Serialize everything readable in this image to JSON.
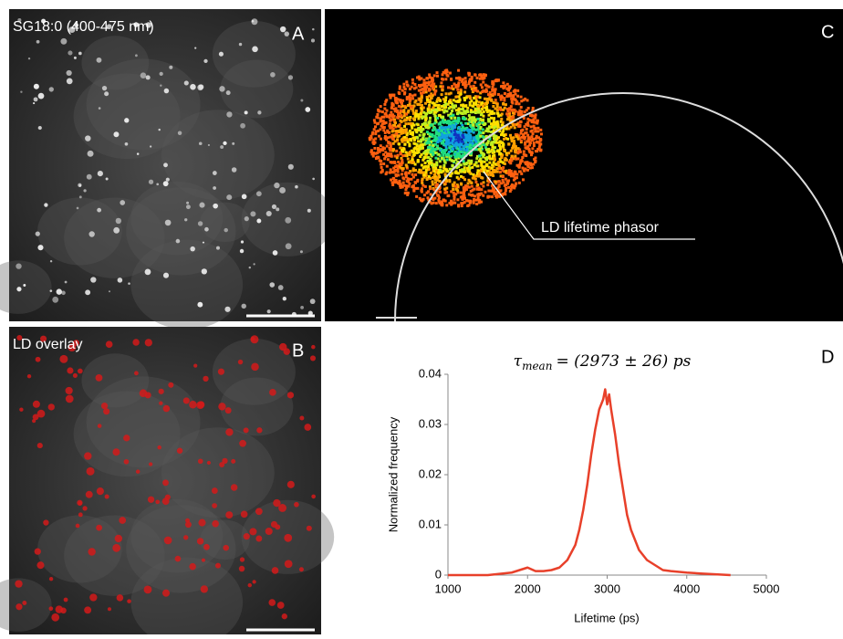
{
  "panels": {
    "a": {
      "label": "SG18:0 (400-475 nm)",
      "letter": "A"
    },
    "b": {
      "label": "LD overlay",
      "letter": "B"
    },
    "c": {
      "letter": "C",
      "annotation": "LD lifetime phasor"
    },
    "d": {
      "letter": "D"
    }
  },
  "chart_data": {
    "type": "line",
    "title_symbol": "τ",
    "title_subscript": "mean",
    "title_rest": "= (2973 ± 26) ps",
    "x_label": "Lifetime (ps)",
    "y_label": "Normalized frequency",
    "xlim": [
      1000,
      5000
    ],
    "xticks": [
      1000,
      2000,
      3000,
      4000,
      5000
    ],
    "ylim": [
      0,
      0.04
    ],
    "yticks": [
      0,
      0.01,
      0.02,
      0.03,
      0.04
    ],
    "series": [
      {
        "color": "#e8402a",
        "x": [
          1000,
          1500,
          1800,
          1900,
          2000,
          2100,
          2200,
          2300,
          2400,
          2500,
          2600,
          2650,
          2700,
          2750,
          2800,
          2850,
          2900,
          2950,
          2975,
          3000,
          3025,
          3050,
          3100,
          3150,
          3200,
          3250,
          3300,
          3350,
          3400,
          3500,
          3600,
          3700,
          3800,
          4000,
          4200,
          4550
        ],
        "values": [
          0,
          0,
          0.0005,
          0.001,
          0.0015,
          0.0008,
          0.0008,
          0.001,
          0.0015,
          0.003,
          0.006,
          0.009,
          0.013,
          0.018,
          0.024,
          0.029,
          0.033,
          0.035,
          0.037,
          0.034,
          0.036,
          0.033,
          0.028,
          0.022,
          0.017,
          0.012,
          0.009,
          0.007,
          0.005,
          0.003,
          0.002,
          0.001,
          0.0008,
          0.0005,
          0.0003,
          0
        ]
      }
    ]
  }
}
